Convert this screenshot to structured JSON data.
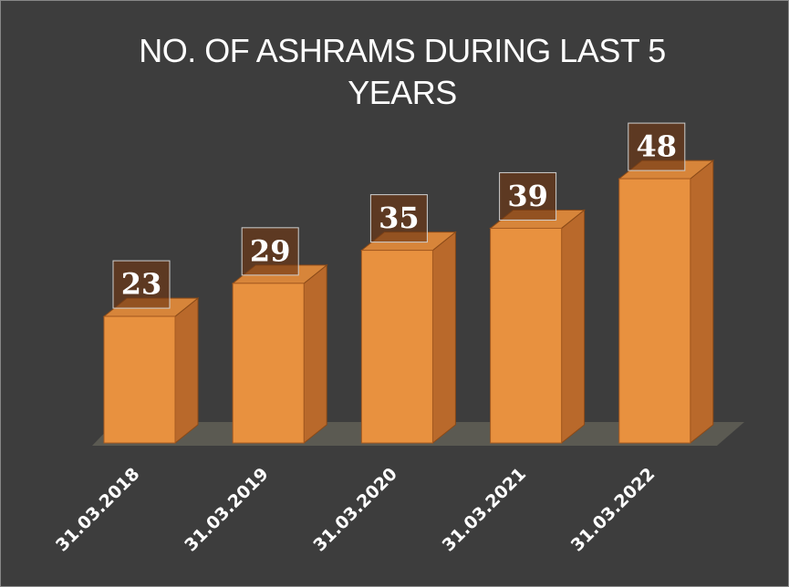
{
  "chart_data": {
    "type": "bar3d",
    "title": "NO. OF ASHRAMS DURING LAST 5 YEARS",
    "categories": [
      "31.03.2018",
      "31.03.2019",
      "31.03.2020",
      "31.03.2021",
      "31.03.2022"
    ],
    "values": [
      23,
      29,
      35,
      39,
      48
    ],
    "color": "#e8913f"
  }
}
